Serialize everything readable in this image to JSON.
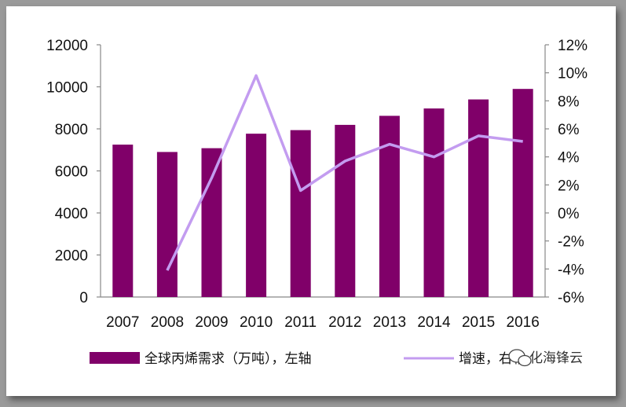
{
  "chart_data": {
    "type": "bar+line",
    "categories": [
      "2007",
      "2008",
      "2009",
      "2010",
      "2011",
      "2012",
      "2013",
      "2014",
      "2015",
      "2016"
    ],
    "series": [
      {
        "name": "全球丙烯需求（万吨），左轴",
        "type": "bar",
        "axis": "left",
        "values": [
          7250,
          6900,
          7080,
          7770,
          7940,
          8190,
          8620,
          8970,
          9400,
          9900
        ]
      },
      {
        "name": "增速，右轴",
        "type": "line",
        "axis": "right",
        "values": [
          null,
          -4.1,
          2.5,
          9.8,
          1.6,
          3.7,
          4.9,
          4.0,
          5.5,
          5.1
        ]
      }
    ],
    "ylim_left": [
      0,
      12000
    ],
    "ylim_right": [
      -6,
      12
    ],
    "yticks_left": [
      "12000",
      "10000",
      "8000",
      "6000",
      "4000",
      "2000",
      "0"
    ],
    "yticks_right": [
      "12%",
      "10%",
      "8%",
      "6%",
      "4%",
      "2%",
      "0%",
      "-2%",
      "-4%",
      "-6%"
    ],
    "colors": {
      "bar": "#800069",
      "line": "#c39cf0"
    },
    "legend_position": "bottom"
  },
  "watermark": "化海锋云"
}
